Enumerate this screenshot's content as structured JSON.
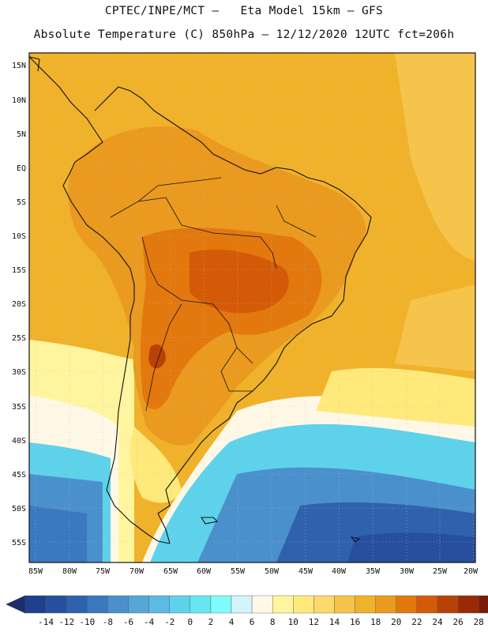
{
  "header": {
    "title_line1": "CPTEC/INPE/MCT –   Eta Model 15km – GFS",
    "title_line2": "Absolute Temperature (C) 850hPa – 12/12/2020 12UTC fct=206h"
  },
  "axes": {
    "lat_labels": [
      "15N",
      "10N",
      "5N",
      "EQ",
      "5S",
      "10S",
      "15S",
      "20S",
      "25S",
      "30S",
      "35S",
      "40S",
      "45S",
      "50S",
      "55S"
    ],
    "lon_labels": [
      "85W",
      "80W",
      "75W",
      "70W",
      "65W",
      "60W",
      "55W",
      "50W",
      "45W",
      "40W",
      "35W",
      "30W",
      "25W",
      "20W"
    ]
  },
  "colorbar": {
    "ticks": [
      "-14",
      "-12",
      "-10",
      "-8",
      "-6",
      "-4",
      "-2",
      "0",
      "2",
      "4",
      "6",
      "8",
      "10",
      "12",
      "14",
      "16",
      "18",
      "20",
      "22",
      "24",
      "26",
      "28"
    ],
    "colors": [
      "#1f3f8f",
      "#26509d",
      "#2f62ad",
      "#3a78bf",
      "#4a90cc",
      "#56a6d6",
      "#5cbbe2",
      "#5ed2ea",
      "#66e6f2",
      "#7ffbfb",
      "#d4f4fb",
      "#fff8e6",
      "#fff59e",
      "#ffe97a",
      "#fcd96a",
      "#f6c44a",
      "#f0b22a",
      "#ea9a1e",
      "#e2780e",
      "#d45a08",
      "#b84106",
      "#9a2a05",
      "#7a1c0a"
    ],
    "left_arrow_color": "#1a2f6a",
    "right_arrow_color": "#6a0a18"
  }
}
